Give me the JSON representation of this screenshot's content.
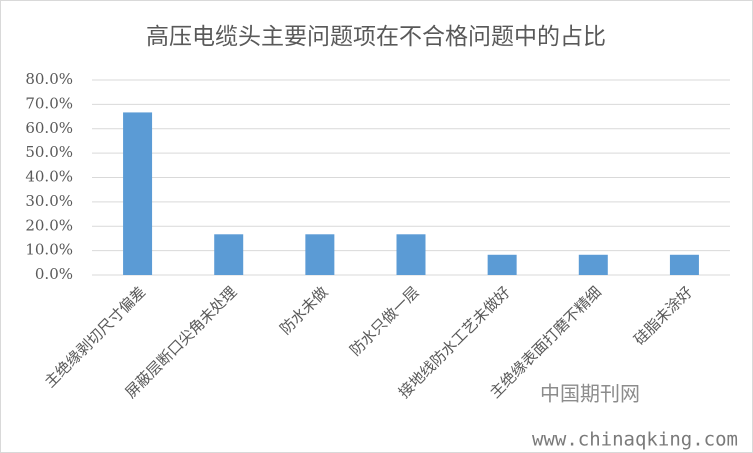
{
  "chart_data": {
    "type": "bar",
    "title": "高压电缆头主要问题项在不合格问题中的占比",
    "categories": [
      "主绝缘剥切尺寸偏差",
      "屏蔽层断口尖角未处理",
      "防水未做",
      "防水只做一层",
      "接地线防水工艺未做好",
      "主绝缘表面打磨不精细",
      "硅脂未涂好"
    ],
    "values": [
      66.7,
      16.7,
      16.7,
      16.7,
      8.3,
      8.3,
      8.3
    ],
    "color": "#5b9bd5",
    "ylim": [
      0,
      80
    ],
    "yticks": [
      {
        "value": 0,
        "label": "0.0%"
      },
      {
        "value": 10,
        "label": "10.0%"
      },
      {
        "value": 20,
        "label": "20.0%"
      },
      {
        "value": 30,
        "label": "30.0%"
      },
      {
        "value": 40,
        "label": "40.0%"
      },
      {
        "value": 50,
        "label": "50.0%"
      },
      {
        "value": 60,
        "label": "60.0%"
      },
      {
        "value": 70,
        "label": "70.0%"
      },
      {
        "value": 80,
        "label": "80.0%"
      }
    ],
    "grid": true,
    "watermarks": [
      "中国期刊网",
      "www.chinaqking.com"
    ]
  }
}
